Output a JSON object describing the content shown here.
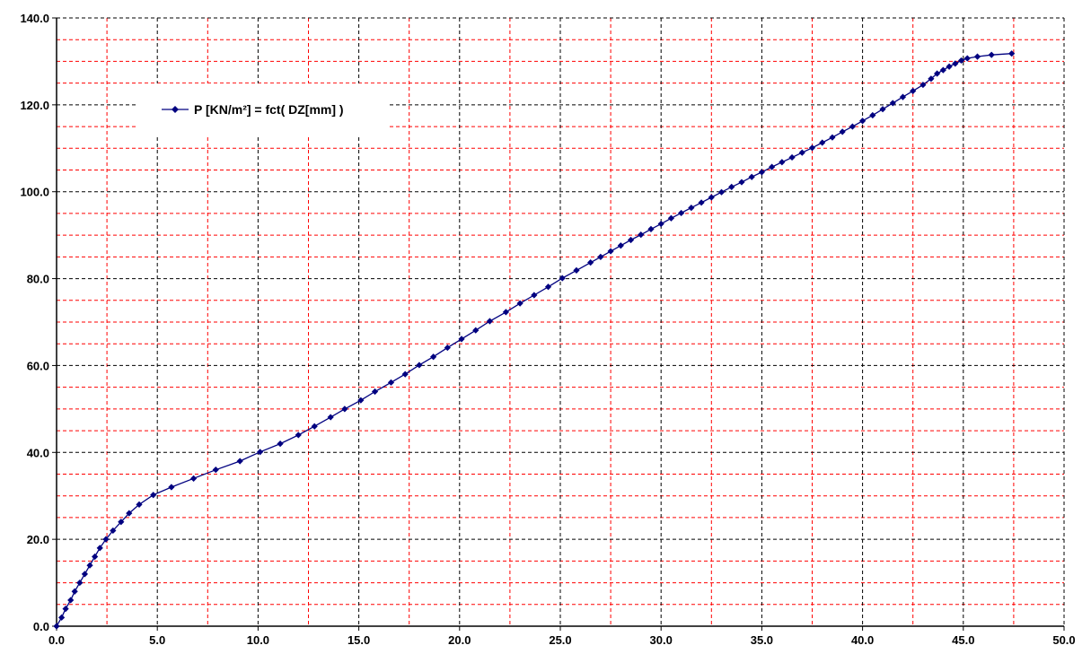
{
  "chart_data": {
    "type": "line",
    "title": "",
    "xlabel": "",
    "ylabel": "",
    "xlim": [
      0,
      50
    ],
    "ylim": [
      0,
      140
    ],
    "x_ticks": [
      "0.0",
      "5.0",
      "10.0",
      "15.0",
      "20.0",
      "25.0",
      "30.0",
      "35.0",
      "40.0",
      "45.0",
      "50.0"
    ],
    "y_ticks": [
      "0.0",
      "20.0",
      "40.0",
      "60.0",
      "80.0",
      "100.0",
      "120.0",
      "140.0"
    ],
    "grid": true,
    "grid_colors": {
      "major": "#000000",
      "minor": "#ff0000"
    },
    "legend_placement": "top-left",
    "series": [
      {
        "name": "P [KN/m²] = fct( DZ[mm] )",
        "color": "#000080",
        "marker": "diamond",
        "x": [
          0.0,
          0.25,
          0.45,
          0.7,
          0.9,
          1.15,
          1.4,
          1.65,
          1.9,
          2.15,
          2.45,
          2.8,
          3.2,
          3.6,
          4.1,
          4.8,
          5.7,
          6.8,
          7.9,
          9.1,
          10.1,
          11.1,
          12.0,
          12.8,
          13.6,
          14.3,
          15.1,
          15.8,
          16.6,
          17.3,
          18.0,
          18.7,
          19.4,
          20.1,
          20.8,
          21.5,
          22.3,
          23.0,
          23.7,
          24.4,
          25.1,
          25.8,
          26.5,
          27.0,
          27.5,
          28.0,
          28.5,
          29.0,
          29.5,
          30.0,
          30.5,
          31.0,
          31.5,
          32.0,
          32.5,
          33.0,
          33.5,
          34.0,
          34.5,
          35.0,
          35.5,
          36.0,
          36.5,
          37.0,
          37.5,
          38.0,
          38.5,
          39.0,
          39.5,
          40.0,
          40.5,
          41.0,
          41.5,
          42.0,
          42.5,
          43.0,
          43.4,
          43.7,
          44.0,
          44.3,
          44.6,
          44.9,
          45.2,
          45.7,
          46.4,
          47.4
        ],
        "y": [
          0.0,
          2.0,
          4.0,
          6.0,
          8.0,
          10.0,
          12.0,
          14.0,
          16.0,
          18.0,
          20.0,
          22.0,
          24.0,
          26.0,
          28.0,
          30.2,
          32.0,
          34.0,
          36.0,
          38.0,
          40.1,
          42.0,
          44.0,
          46.0,
          48.1,
          50.0,
          52.0,
          54.0,
          56.1,
          58.0,
          60.1,
          62.0,
          64.1,
          66.1,
          68.1,
          70.2,
          72.3,
          74.3,
          76.2,
          78.1,
          80.1,
          81.9,
          83.7,
          85.0,
          86.3,
          87.6,
          88.9,
          90.1,
          91.4,
          92.6,
          93.9,
          95.1,
          96.3,
          97.5,
          98.7,
          99.9,
          101.1,
          102.2,
          103.4,
          104.5,
          105.7,
          106.8,
          107.9,
          109.0,
          110.1,
          111.3,
          112.5,
          113.8,
          115.0,
          116.3,
          117.6,
          119.0,
          120.4,
          121.8,
          123.2,
          124.6,
          126.0,
          127.2,
          128.0,
          128.8,
          129.5,
          130.2,
          130.7,
          131.1,
          131.5,
          131.8
        ]
      }
    ]
  }
}
